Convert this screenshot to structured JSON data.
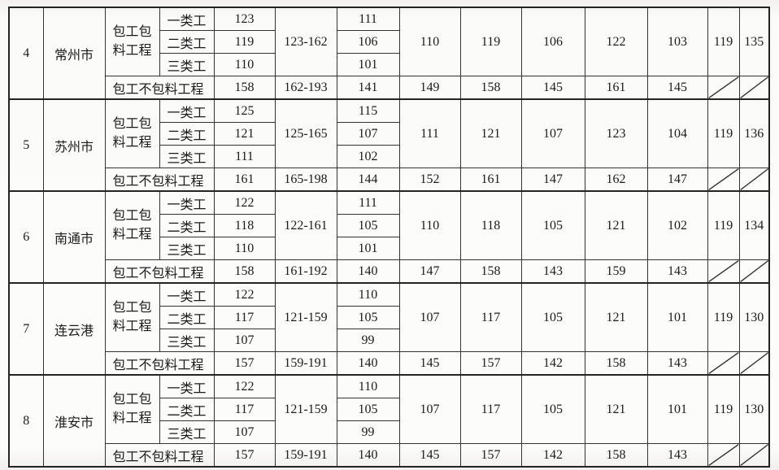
{
  "document": {
    "labels": {
      "with_materials": "包工包料工程",
      "without_materials": "包工不包料工程",
      "worker_classes": [
        "一类工",
        "二类工",
        "三类工"
      ]
    },
    "colors": {
      "border": "#333333",
      "outer_border": "#242424",
      "paper": "#fbfbfa",
      "ink": "#1b1b1b"
    },
    "rows": [
      {
        "no": "4",
        "city": "常州市",
        "with_materials": {
          "class_day_wages": [
            "123",
            "119",
            "110"
          ],
          "range": "123-162",
          "second_wages": [
            "111",
            "106",
            "101"
          ],
          "merged_values": [
            "110",
            "119",
            "106",
            "122",
            "103",
            "119",
            "135"
          ]
        },
        "without_materials": {
          "values": [
            "158",
            "162-193",
            "141",
            "149",
            "158",
            "145",
            "161",
            "145"
          ]
        }
      },
      {
        "no": "5",
        "city": "苏州市",
        "with_materials": {
          "class_day_wages": [
            "125",
            "121",
            "111"
          ],
          "range": "125-165",
          "second_wages": [
            "115",
            "107",
            "102"
          ],
          "merged_values": [
            "111",
            "121",
            "107",
            "123",
            "104",
            "119",
            "136"
          ]
        },
        "without_materials": {
          "values": [
            "161",
            "165-198",
            "144",
            "152",
            "161",
            "147",
            "162",
            "147"
          ]
        }
      },
      {
        "no": "6",
        "city": "南通市",
        "with_materials": {
          "class_day_wages": [
            "122",
            "118",
            "110"
          ],
          "range": "122-161",
          "second_wages": [
            "111",
            "105",
            "101"
          ],
          "merged_values": [
            "110",
            "118",
            "105",
            "121",
            "102",
            "119",
            "134"
          ]
        },
        "without_materials": {
          "values": [
            "158",
            "161-192",
            "140",
            "147",
            "158",
            "143",
            "159",
            "143"
          ]
        }
      },
      {
        "no": "7",
        "city": "连云港",
        "with_materials": {
          "class_day_wages": [
            "122",
            "117",
            "107"
          ],
          "range": "121-159",
          "second_wages": [
            "110",
            "105",
            "99"
          ],
          "merged_values": [
            "107",
            "117",
            "105",
            "121",
            "101",
            "119",
            "130"
          ]
        },
        "without_materials": {
          "values": [
            "157",
            "159-191",
            "140",
            "145",
            "157",
            "142",
            "158",
            "143"
          ]
        }
      },
      {
        "no": "8",
        "city": "淮安市",
        "with_materials": {
          "class_day_wages": [
            "122",
            "117",
            "107"
          ],
          "range": "121-159",
          "second_wages": [
            "110",
            "105",
            "99"
          ],
          "merged_values": [
            "107",
            "117",
            "105",
            "121",
            "101",
            "119",
            "130"
          ]
        },
        "without_materials": {
          "values": [
            "157",
            "159-191",
            "140",
            "145",
            "157",
            "142",
            "158",
            "143"
          ]
        }
      }
    ]
  }
}
